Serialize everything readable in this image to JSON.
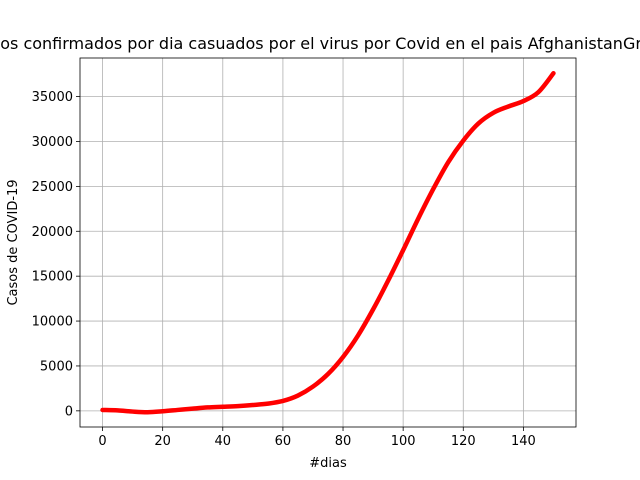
{
  "chart_data": {
    "type": "line",
    "title": "Casos confirmados por dia casuados por el virus por Covid en el pais AfghanistanGrado=",
    "xlabel": "#dias",
    "ylabel": "Casos de COVID-19",
    "xlim": [
      -7.5,
      157.5
    ],
    "ylim": [
      -1800,
      39300
    ],
    "xticks": [
      0,
      20,
      40,
      60,
      80,
      100,
      120,
      140
    ],
    "yticks": [
      0,
      5000,
      10000,
      15000,
      20000,
      25000,
      30000,
      35000
    ],
    "grid": true,
    "series": [
      {
        "color": "#ff0000",
        "x": [
          0,
          5,
          10,
          15,
          20,
          25,
          30,
          35,
          40,
          45,
          50,
          55,
          60,
          65,
          70,
          75,
          80,
          85,
          90,
          95,
          100,
          105,
          110,
          115,
          120,
          125,
          130,
          135,
          140,
          145,
          150
        ],
        "y": [
          100,
          50,
          -80,
          -150,
          -50,
          100,
          250,
          380,
          450,
          530,
          650,
          800,
          1100,
          1700,
          2700,
          4100,
          6000,
          8400,
          11300,
          14500,
          17900,
          21400,
          24700,
          27700,
          30100,
          32000,
          33200,
          33900,
          34500,
          35500,
          37600
        ]
      }
    ]
  }
}
